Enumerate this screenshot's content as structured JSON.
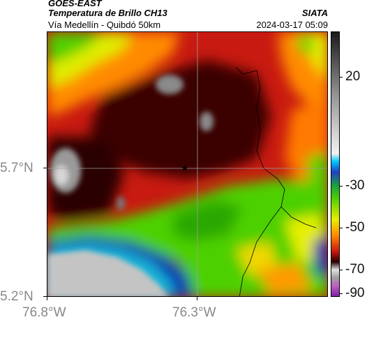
{
  "header": {
    "satellite": "GOES-EAST",
    "product": "Temperatura de Brillo CH13",
    "region": "Vía Medellín - Quibdó 50km",
    "agency": "SIATA",
    "datetime": "2024-03-17 05:09"
  },
  "axes": {
    "lat_labels": [
      "5.7°N",
      "5.2°N"
    ],
    "lon_labels": [
      "76.8°W",
      "76.3°W"
    ]
  },
  "colorbar": {
    "labels": [
      "20",
      "-30",
      "-50",
      "-70",
      "-90"
    ]
  },
  "map": {
    "marker": "star",
    "colors": {
      "dark": "#3a0000",
      "red": "#b81414",
      "orange": "#ff7a00",
      "yellow": "#e8ef00",
      "green": "#4ed000",
      "blue": "#0a30b0",
      "cyan": "#19b6d8",
      "gray": "#bdbdbd"
    }
  }
}
